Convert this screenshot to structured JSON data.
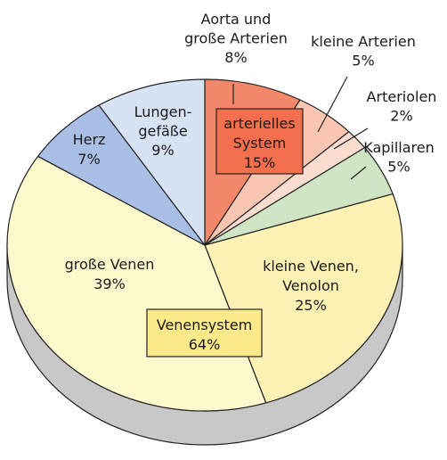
{
  "chart_data": {
    "type": "pie",
    "title": "",
    "slices": [
      {
        "key": "aorta",
        "label_lines": [
          "Aorta und",
          "große Arterien"
        ],
        "value_label": "8%",
        "value": 8,
        "color": "#f4876a"
      },
      {
        "key": "kleine-arterien",
        "label_lines": [
          "kleine Arterien"
        ],
        "value_label": "5%",
        "value": 5,
        "color": "#f9c7b1"
      },
      {
        "key": "arteriolen",
        "label_lines": [
          "Arteriolen"
        ],
        "value_label": "2%",
        "value": 2,
        "color": "#fbddd0"
      },
      {
        "key": "kapillaren",
        "label_lines": [
          "Kapillaren"
        ],
        "value_label": "5%",
        "value": 5,
        "color": "#cfe5c4"
      },
      {
        "key": "kleine-venen",
        "label_lines": [
          "kleine Venen,",
          "Venolon"
        ],
        "value_label": "25%",
        "value": 25,
        "color": "#fdf2b4"
      },
      {
        "key": "grosse-venen",
        "label_lines": [
          "große Venen"
        ],
        "value_label": "39%",
        "value": 39,
        "color": "#fef8cd"
      },
      {
        "key": "herz",
        "label_lines": [
          "Herz"
        ],
        "value_label": "7%",
        "value": 7,
        "color": "#a9bfe6"
      },
      {
        "key": "lungengefaesse",
        "label_lines": [
          "Lungen-",
          "gefäße"
        ],
        "value_label": "9%",
        "value": 9,
        "color": "#d7e2f5"
      }
    ],
    "groups": [
      {
        "key": "arterielles-system",
        "label_lines": [
          "arterielles",
          "System"
        ],
        "value_label": "15%",
        "value": 15,
        "color": "#f36f4e"
      },
      {
        "key": "venensystem",
        "label_lines": [
          "Venensystem"
        ],
        "value_label": "64%",
        "value": 64,
        "color": "#fce98a"
      }
    ],
    "colors": {
      "side": "#c8c8c8",
      "stroke": "#222222"
    }
  }
}
